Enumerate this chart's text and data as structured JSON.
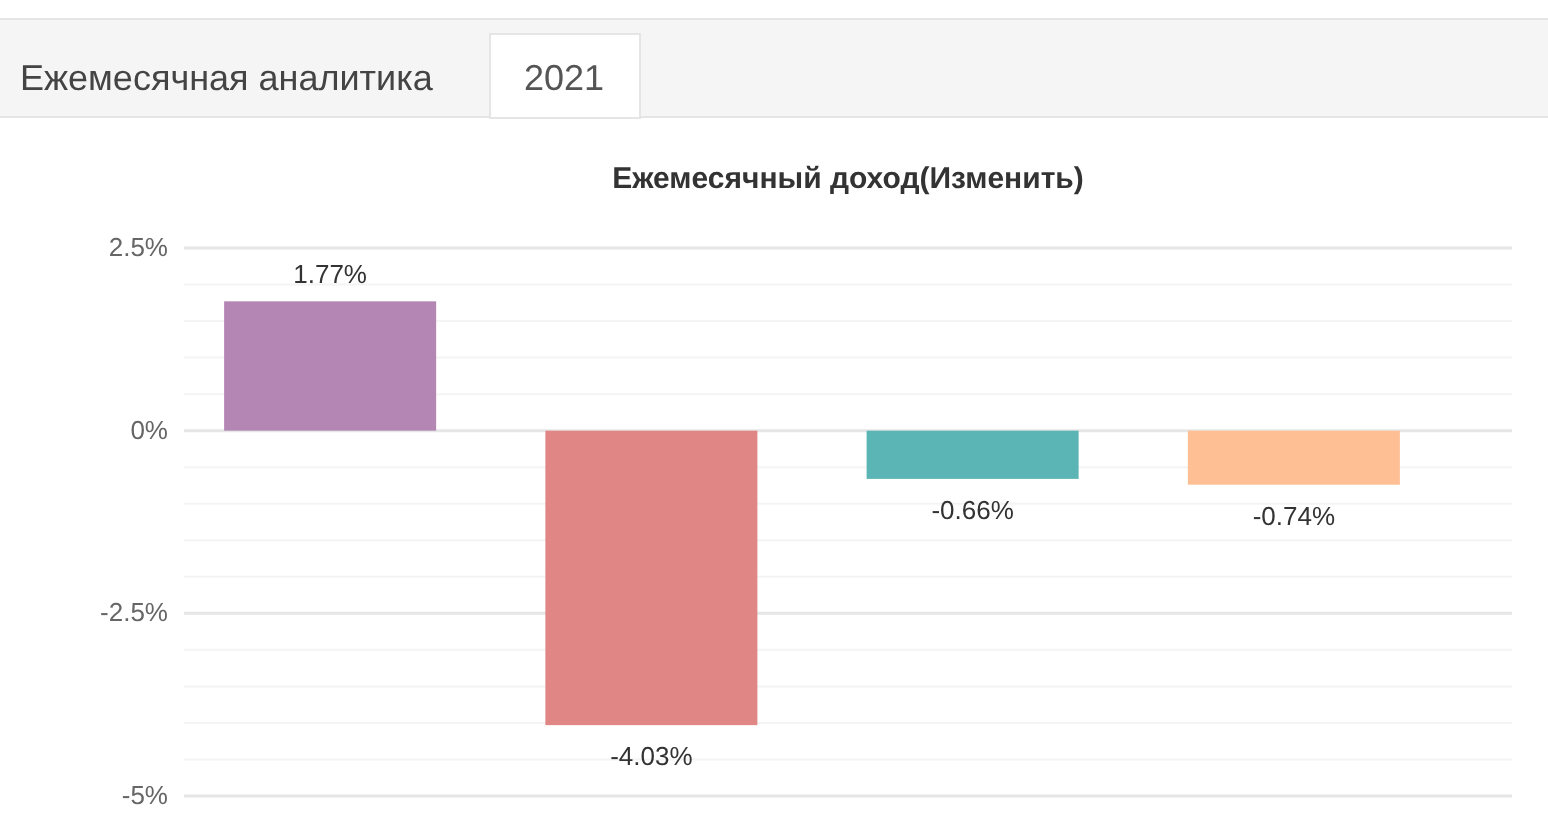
{
  "chart_data": {
    "type": "bar",
    "title": "Ежемесячный доход(Изменить)",
    "annotations": [
      "Ежемесячная аналитика",
      "2021"
    ],
    "categories": [
      null,
      null,
      null,
      null
    ],
    "values": [
      1.77,
      -4.03,
      -0.66,
      -0.74
    ],
    "colors": [
      "#b386b3",
      "#e08786",
      "#5cb5b5",
      "#ffbf95"
    ],
    "value_labels": [
      "1.77%",
      "-4.03%",
      "-0.66%",
      "-0.74%"
    ],
    "ylim": [
      -5,
      2.5
    ],
    "yticks": [
      {
        "value": 2.5,
        "label": "2.5%"
      },
      {
        "value": 2,
        "label": null
      },
      {
        "value": 1.5,
        "label": null
      },
      {
        "value": 1,
        "label": null
      },
      {
        "value": 0.5,
        "label": null
      },
      {
        "value": 0,
        "label": "0%"
      },
      {
        "value": -0.5,
        "label": null
      },
      {
        "value": -1,
        "label": null
      },
      {
        "value": -1.5,
        "label": null
      },
      {
        "value": -2,
        "label": null
      },
      {
        "value": -2.5,
        "label": "-2.5%"
      },
      {
        "value": -3,
        "label": null
      },
      {
        "value": -3.5,
        "label": null
      },
      {
        "value": -4,
        "label": null
      },
      {
        "value": -4.5,
        "label": null
      },
      {
        "value": -5,
        "label": "-5%"
      }
    ],
    "grid": "y",
    "tick_labels": "y"
  }
}
